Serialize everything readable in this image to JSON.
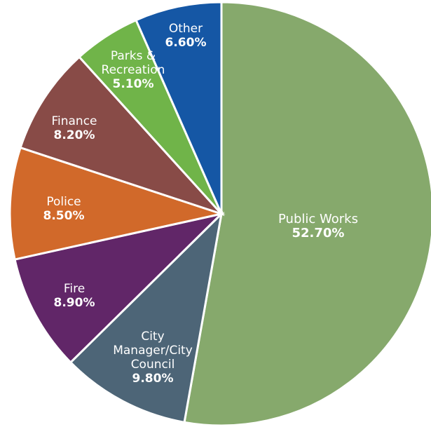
{
  "chart_data": {
    "type": "pie",
    "title": "",
    "start_angle_deg": 0,
    "direction": "clockwise",
    "slices": [
      {
        "label": "Public Works",
        "label_lines": [
          "Public Works"
        ],
        "value": 52.7,
        "value_label": "52.70%",
        "color": "#86a96c"
      },
      {
        "label": "City Manager/City Council",
        "label_lines": [
          "City",
          "Manager/City",
          "Council"
        ],
        "value": 9.8,
        "value_label": "9.80%",
        "color": "#4d6577"
      },
      {
        "label": "Fire",
        "label_lines": [
          "Fire"
        ],
        "value": 8.9,
        "value_label": "8.90%",
        "color": "#612668"
      },
      {
        "label": "Police",
        "label_lines": [
          "Police"
        ],
        "value": 8.5,
        "value_label": "8.50%",
        "color": "#d1692a"
      },
      {
        "label": "Finance",
        "label_lines": [
          "Finance"
        ],
        "value": 8.2,
        "value_label": "8.20%",
        "color": "#884b47"
      },
      {
        "label": "Parks & Recreation",
        "label_lines": [
          "Parks &",
          "Recreation"
        ],
        "value": 5.1,
        "value_label": "5.10%",
        "color": "#70b449"
      },
      {
        "label": "Other",
        "label_lines": [
          "Other"
        ],
        "value": 6.6,
        "value_label": "6.60%",
        "color": "#1557a5"
      }
    ]
  }
}
